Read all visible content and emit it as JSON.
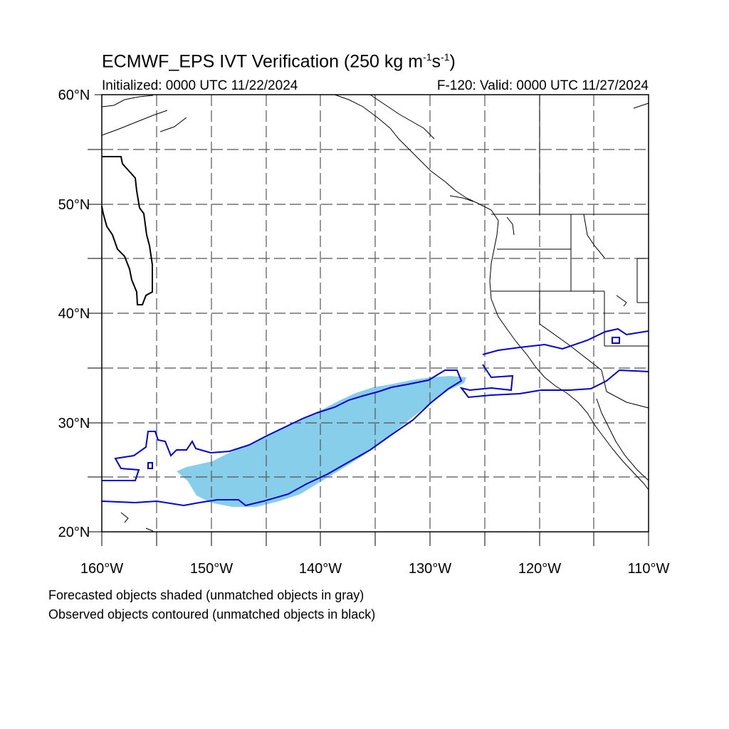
{
  "title": {
    "main": "ECMWF_EPS IVT Verification (250 kg m",
    "sup1": "-1",
    "mid": "s",
    "sup2": "-1",
    "end": ")"
  },
  "subtitle_left": "Initialized: 0000 UTC 11/22/2024",
  "subtitle_right": "F-120: Valid: 0000 UTC 11/27/2024",
  "lat_labels": [
    "60°N",
    "50°N",
    "40°N",
    "30°N",
    "20°N"
  ],
  "lon_labels": [
    "160°W",
    "150°W",
    "140°W",
    "130°W",
    "120°W",
    "110°W"
  ],
  "legend_notes": [
    "Forecasted objects shaded (unmatched objects in gray)",
    "Observed objects contoured (unmatched objects in black)"
  ],
  "colors": {
    "forecast_fill": "#87ceeb",
    "matched_observed_contour": "#0000dd",
    "unmatched_observed_contour": "#000000",
    "grid": "#555555",
    "coastline": "#000000"
  }
}
